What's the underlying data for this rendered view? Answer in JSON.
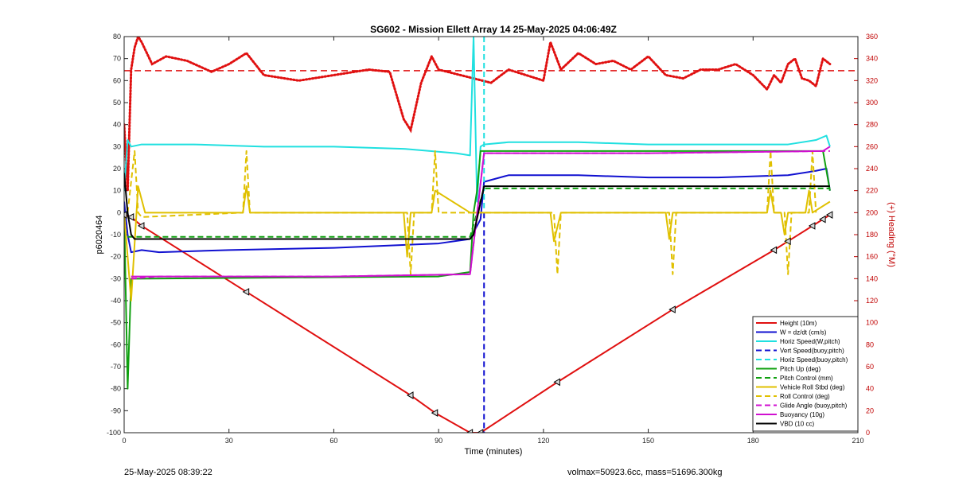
{
  "chart_data": {
    "type": "line",
    "title": "SG602 - Mission Ellett Array 14 25-May-2025 04:06:49Z",
    "xlabel": "Time (minutes)",
    "ylabel": "p6020464",
    "ylabel_right": "(+) Heading (°M)",
    "xlim": [
      0,
      210
    ],
    "ylim": [
      -100,
      80
    ],
    "ylim_right": [
      0,
      360
    ],
    "x_ticks": [
      0,
      30,
      60,
      90,
      120,
      150,
      180,
      210
    ],
    "y_ticks": [
      -100,
      -90,
      -80,
      -70,
      -60,
      -50,
      -40,
      -30,
      -20,
      -10,
      0,
      10,
      20,
      30,
      40,
      50,
      60,
      70,
      80
    ],
    "y_ticks_right": [
      0,
      20,
      40,
      60,
      80,
      100,
      120,
      140,
      160,
      180,
      200,
      220,
      240,
      260,
      280,
      300,
      320,
      340,
      360
    ],
    "grid": false,
    "legend_position": "bottom-right",
    "series": [
      {
        "name": "Height (10m)",
        "color": "#e01010",
        "style": "solid",
        "x": [
          0,
          2,
          5,
          35,
          82,
          89,
          99,
          102,
          124,
          157,
          186,
          190,
          197,
          200,
          202
        ],
        "y": [
          -1,
          -2,
          -6,
          -36,
          -83,
          -91,
          -100,
          -100,
          -77,
          -44,
          -17,
          -13,
          -6,
          -3,
          -1
        ]
      },
      {
        "name": "W = dz/dt (cm/s)",
        "color": "#1010d0",
        "style": "solid",
        "x": [
          0,
          1,
          2,
          5,
          10,
          30,
          60,
          90,
          99,
          102,
          103,
          110,
          130,
          150,
          170,
          190,
          198,
          201,
          202
        ],
        "y": [
          5,
          -10,
          -18,
          -17,
          -18,
          -17,
          -16,
          -14,
          -12,
          -3,
          14,
          17,
          17,
          16,
          16,
          17,
          19,
          20,
          10
        ]
      },
      {
        "name": "Horiz Speed(W,pitch)",
        "color": "#20e0e0",
        "style": "solid",
        "x": [
          0,
          1,
          2,
          5,
          20,
          40,
          60,
          80,
          95,
          99,
          100,
          101,
          102,
          103,
          110,
          130,
          150,
          170,
          190,
          198,
          201,
          202
        ],
        "y": [
          10,
          33,
          30,
          31,
          31,
          30,
          30,
          29,
          27,
          26,
          80,
          5,
          30,
          31,
          32,
          32,
          31,
          31,
          31,
          33,
          35,
          30
        ]
      },
      {
        "name": "Vert Speed(buoy,pitch)",
        "color": "#1010d0",
        "style": "dashed",
        "x": [
          103,
          103
        ],
        "y": [
          0,
          -100
        ]
      },
      {
        "name": "Horiz Speed(buoy,pitch)",
        "color": "#20e0e0",
        "style": "dashed",
        "x": [
          103,
          103
        ],
        "y": [
          80,
          2
        ]
      },
      {
        "name": "Pitch Up (deg)",
        "color": "#10a010",
        "style": "solid",
        "x": [
          0,
          1,
          2,
          4,
          90,
          99,
          100,
          101,
          102,
          103,
          150,
          200,
          202
        ],
        "y": [
          0,
          -80,
          -30,
          -30,
          -29,
          -27,
          0,
          10,
          28,
          28,
          28,
          28,
          10
        ]
      },
      {
        "name": "Pitch Control (mm)",
        "color": "#10a010",
        "style": "dashed",
        "x": [
          1,
          3,
          99,
          103,
          202
        ],
        "y": [
          -11,
          -11,
          -11,
          11,
          11
        ]
      },
      {
        "name": "Vehicle Roll Stbd (deg)",
        "color": "#e0c000",
        "style": "solid",
        "x": [
          0,
          2,
          4,
          6,
          30,
          34,
          35,
          36,
          80,
          81,
          82,
          88,
          89,
          99,
          102,
          103,
          122,
          123,
          125,
          155,
          156,
          157,
          184,
          185,
          186,
          188,
          189,
          190,
          195,
          196,
          197,
          202
        ],
        "y": [
          0,
          -40,
          12,
          0,
          0,
          0,
          12,
          0,
          0,
          -20,
          0,
          0,
          10,
          0,
          0,
          0,
          0,
          -13,
          0,
          0,
          -12,
          0,
          0,
          10,
          0,
          0,
          -10,
          0,
          0,
          10,
          0,
          5
        ]
      },
      {
        "name": "Roll Control (deg)",
        "color": "#e0c000",
        "style": "dashed",
        "x": [
          1,
          3,
          4,
          5,
          34,
          35,
          36,
          81,
          82,
          83,
          88,
          89,
          90,
          123,
          124,
          125,
          156,
          157,
          158,
          184,
          185,
          186,
          189,
          190,
          191,
          196,
          197,
          198
        ],
        "y": [
          0,
          28,
          0,
          -2,
          0,
          28,
          0,
          0,
          -28,
          0,
          0,
          28,
          0,
          0,
          -28,
          0,
          0,
          -28,
          0,
          0,
          28,
          0,
          0,
          -28,
          0,
          0,
          28,
          0
        ]
      },
      {
        "name": "Glide Angle (buoy,pitch)",
        "color": "#d010d0",
        "style": "dashed",
        "x": [
          2,
          10,
          60,
          99,
          103,
          150,
          200,
          202
        ],
        "y": [
          -30,
          -29,
          -29,
          -28,
          27,
          27,
          28,
          28
        ]
      },
      {
        "name": "Buoyancy (10g)",
        "color": "#d010d0",
        "style": "solid",
        "x": [
          2,
          10,
          60,
          99,
          103,
          150,
          200,
          202
        ],
        "y": [
          -29,
          -29,
          -29,
          -28,
          27,
          27,
          28,
          30
        ]
      },
      {
        "name": "VBD (10 cc)",
        "color": "#000000",
        "style": "solid",
        "x": [
          0,
          1,
          2,
          3,
          99,
          100,
          103,
          202
        ],
        "y": [
          18,
          0,
          -10,
          -12,
          -12,
          -10,
          12,
          12
        ]
      }
    ],
    "heading": {
      "name": "Heading",
      "color": "#e01010",
      "style": "dotted",
      "axis": "right",
      "x": [
        0,
        1,
        2,
        3,
        4,
        5,
        8,
        12,
        18,
        25,
        30,
        35,
        40,
        50,
        60,
        70,
        76,
        80,
        82,
        85,
        88,
        90,
        95,
        100,
        105,
        110,
        115,
        120,
        122,
        125,
        130,
        135,
        140,
        145,
        150,
        155,
        160,
        165,
        170,
        175,
        180,
        184,
        186,
        188,
        190,
        192,
        194,
        196,
        198,
        200,
        202
      ],
      "y": [
        280,
        220,
        330,
        350,
        360,
        355,
        335,
        342,
        338,
        328,
        335,
        345,
        325,
        320,
        325,
        330,
        328,
        285,
        275,
        318,
        342,
        330,
        326,
        322,
        318,
        330,
        325,
        320,
        355,
        330,
        345,
        335,
        338,
        330,
        342,
        325,
        322,
        330,
        330,
        335,
        325,
        312,
        325,
        318,
        335,
        340,
        322,
        320,
        315,
        340,
        335
      ],
      "mean": 329
    },
    "legend": [
      "Height (10m)",
      "W = dz/dt (cm/s)",
      "Horiz Speed(W,pitch)",
      "Vert Speed(buoy,pitch)",
      "Horiz Speed(buoy,pitch)",
      "Pitch Up (deg)",
      "Pitch Control (mm)",
      "Vehicle Roll Stbd (deg)",
      "Roll Control (deg)",
      "Glide Angle (buoy,pitch)",
      "Buoyancy (10g)",
      "VBD (10 cc)"
    ]
  },
  "footer": {
    "left": "25-May-2025 08:39:22",
    "right": "volmax=50923.6cc, mass=51696.300kg"
  }
}
